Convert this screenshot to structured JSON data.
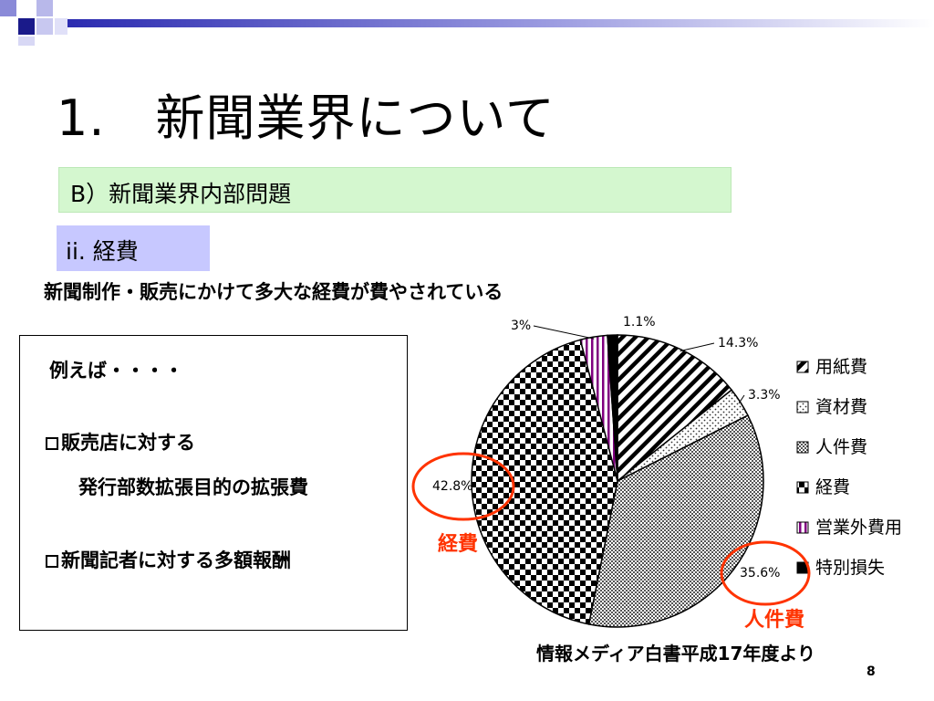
{
  "slide": {
    "title": "1.　新聞業界について",
    "section_label": "B）新聞業界内部問題",
    "subsection_label": "ii.  経費",
    "lead_text": "新聞制作・販売にかけて多大な経費が費やされている",
    "box": {
      "intro": "例えば・・・・",
      "item1_line1": "販売店に対する",
      "item1_line2": "発行部数拡張目的の拡張費",
      "item2": "新聞記者に対する多額報酬"
    },
    "source": "情報メディア白書平成17年度より",
    "page_number": "8"
  },
  "chart_data": {
    "type": "pie",
    "slices": [
      {
        "label": "用紙費",
        "value": 14.3,
        "value_label": "14.3%"
      },
      {
        "label": "資材費",
        "value": 3.3,
        "value_label": "3.3%"
      },
      {
        "label": "人件費",
        "value": 35.6,
        "value_label": "35.6%"
      },
      {
        "label": "経費",
        "value": 42.8,
        "value_label": "42.8%"
      },
      {
        "label": "営業外費用",
        "value": 3,
        "value_label": "3%"
      },
      {
        "label": "特別損失",
        "value": 1.1,
        "value_label": "1.1%"
      }
    ],
    "legend_position": "right",
    "annotations": {
      "keihi": "経費",
      "jinkenhi": "人件費"
    },
    "annotation_color": "#ff3300"
  }
}
